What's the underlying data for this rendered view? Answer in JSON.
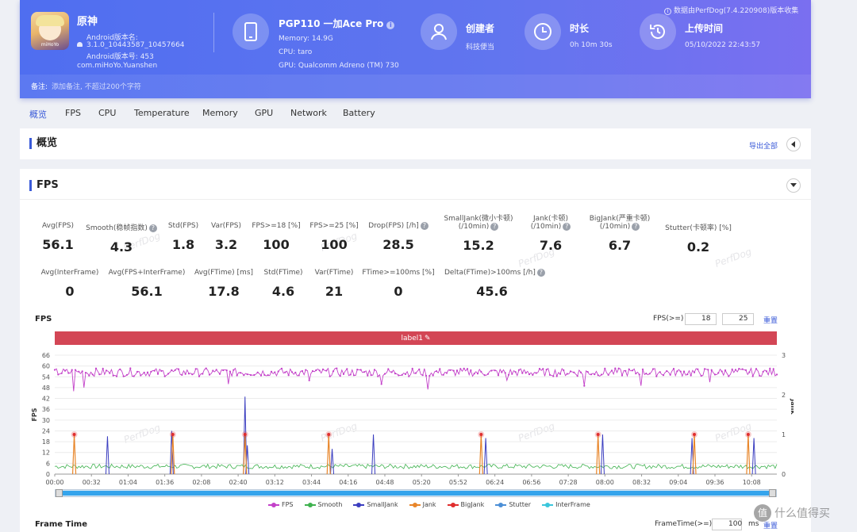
{
  "header": {
    "app_name": "原神",
    "app_icon_label": "miHoYo",
    "android_version_label": "Android版本名:",
    "android_version": "3.1.0_10443587_10457664",
    "android_build": "Android版本号: 453",
    "package": "com.miHoYo.Yuanshen",
    "device_name": "PGP110 一加Ace Pro",
    "memory": "Memory: 14.9G",
    "cpu": "CPU: taro",
    "gpu": "GPU: Qualcomm Adreno (TM) 730",
    "creator_label": "创建者",
    "creator_value": "科技便当",
    "duration_label": "时长",
    "duration_value": "0h 10m 30s",
    "upload_label": "上传时间",
    "upload_value": "05/10/2022 22:43:57",
    "source_note": "数据由PerfDog(7.4.220908)版本收集",
    "remark_label": "备注:",
    "remark_placeholder": "添加备注, 不超过200个字符"
  },
  "tabs": [
    "概览",
    "FPS",
    "CPU",
    "Temperature",
    "Memory",
    "GPU",
    "Network",
    "Battery"
  ],
  "overview": {
    "title": "概览",
    "export_label": "导出全部"
  },
  "fps_section": {
    "title": "FPS",
    "row1": [
      {
        "label": "Avg(FPS)",
        "value": "56.1",
        "help": false
      },
      {
        "label": "Smooth(稳帧指数)",
        "value": "4.3",
        "help": true
      },
      {
        "label": "Std(FPS)",
        "value": "1.8",
        "help": false
      },
      {
        "label": "Var(FPS)",
        "value": "3.2",
        "help": false
      },
      {
        "label": "FPS>=18 [%]",
        "value": "100",
        "help": false
      },
      {
        "label": "FPS>=25 [%]",
        "value": "100",
        "help": false
      },
      {
        "label": "Drop(FPS) [/h]",
        "value": "28.5",
        "help": true
      },
      {
        "label": "SmallJank(微小卡顿)",
        "label2": "(/10min)",
        "value": "15.2",
        "help": true
      },
      {
        "label": "Jank(卡顿)",
        "label2": "(/10min)",
        "value": "7.6",
        "help": true
      },
      {
        "label": "BigJank(严重卡顿)",
        "label2": "(/10min)",
        "value": "6.7",
        "help": true
      },
      {
        "label": "Stutter(卡顿率) [%]",
        "value": "0.2",
        "help": false
      }
    ],
    "row2": [
      {
        "label": "Avg(InterFrame)",
        "value": "0",
        "help": false
      },
      {
        "label": "Avg(FPS+InterFrame)",
        "value": "56.1",
        "help": false
      },
      {
        "label": "Avg(FTime) [ms]",
        "value": "17.8",
        "help": false
      },
      {
        "label": "Std(FTime)",
        "value": "4.6",
        "help": false
      },
      {
        "label": "Var(FTime)",
        "value": "21",
        "help": false
      },
      {
        "label": "FTime>=100ms [%]",
        "value": "0",
        "help": false
      },
      {
        "label": "Delta(FTime)>100ms [/h]",
        "value": "45.6",
        "help": true
      }
    ]
  },
  "fps_chart_header": {
    "title": "FPS",
    "threshold_label": "FPS(>=)",
    "threshold1": "18",
    "threshold2": "25",
    "reset_label": "重置",
    "band_label": "label1"
  },
  "frametime": {
    "title": "Frame Time",
    "threshold_label": "FrameTime(>=)",
    "threshold": "100",
    "unit": "ms",
    "reset_label": "重置"
  },
  "watermark": "PerfDog",
  "corner_watermark": "什么值得买",
  "chart_data": {
    "type": "line",
    "x_ticks": [
      "00:00",
      "00:32",
      "01:04",
      "01:36",
      "02:08",
      "02:40",
      "03:12",
      "03:44",
      "04:16",
      "04:48",
      "05:20",
      "05:52",
      "06:24",
      "06:56",
      "07:28",
      "08:00",
      "08:32",
      "09:04",
      "09:36",
      "10:08"
    ],
    "x_range_seconds": [
      0,
      630
    ],
    "y_left_label": "FPS",
    "y_left_ticks": [
      0,
      6,
      12,
      18,
      24,
      30,
      36,
      42,
      48,
      54,
      60,
      66
    ],
    "y_left_range": [
      0,
      66
    ],
    "y_right_label": "Jank",
    "y_right_ticks": [
      0,
      1,
      2,
      3
    ],
    "y_right_range": [
      0,
      3
    ],
    "fps_mean": 56.5,
    "fps_dips": [
      [
        17,
        46
      ],
      [
        25,
        48
      ],
      [
        152,
        50
      ],
      [
        222,
        52
      ],
      [
        285,
        50
      ],
      [
        325,
        47
      ],
      [
        395,
        52
      ],
      [
        462,
        49
      ],
      [
        511,
        49
      ],
      [
        571,
        51
      ]
    ],
    "smooth_baseline": 4.3,
    "bigjank_events_seconds": [
      17,
      103,
      166,
      239,
      372,
      474,
      558,
      605
    ],
    "smalljank_spikes": [
      [
        46,
        21
      ],
      [
        102,
        24
      ],
      [
        166,
        43
      ],
      [
        278,
        22
      ],
      [
        376,
        20
      ],
      [
        478,
        22
      ],
      [
        556,
        20
      ],
      [
        610,
        20
      ],
      [
        168,
        16
      ],
      [
        242,
        14
      ]
    ],
    "series": [
      {
        "name": "FPS",
        "color": "#c341c9"
      },
      {
        "name": "Smooth",
        "color": "#3fb24f"
      },
      {
        "name": "SmallJank",
        "color": "#3b3ec0"
      },
      {
        "name": "Jank",
        "color": "#e8862a"
      },
      {
        "name": "BigJank",
        "color": "#e02e2e"
      },
      {
        "name": "Stutter",
        "color": "#4c8fd6"
      },
      {
        "name": "InterFrame",
        "color": "#3bc6dc"
      }
    ]
  }
}
